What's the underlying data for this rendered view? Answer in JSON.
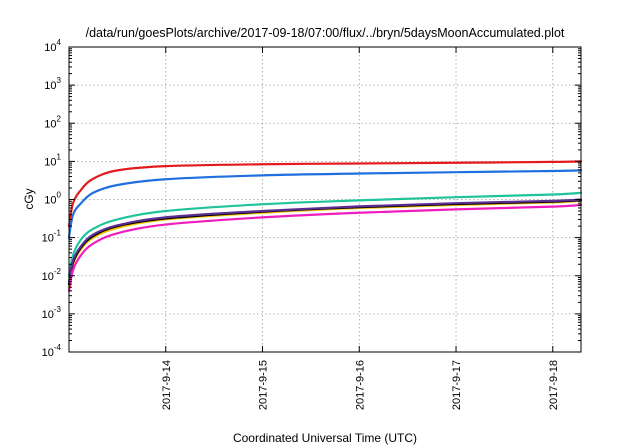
{
  "chart_data": {
    "type": "line",
    "title": "/data/run/goesPlots/archive/2017-09-18/07:00/flux/../bryn/5daysMoonAccumulated.plot",
    "xlabel": "Coordinated Universal Time (UTC)",
    "ylabel": "cGy",
    "x_range": [
      "2017-09-13T00:00",
      "2017-09-18T07:00"
    ],
    "x_ticks": [
      "2017-9-14",
      "2017-9-15",
      "2017-9-16",
      "2017-9-17",
      "2017-9-18"
    ],
    "y_scale": "log",
    "ylim": [
      0.0001,
      10000
    ],
    "y_ticks": [
      {
        "base": "10",
        "exp": "-4"
      },
      {
        "base": "10",
        "exp": "-3"
      },
      {
        "base": "10",
        "exp": "-2"
      },
      {
        "base": "10",
        "exp": "-1"
      },
      {
        "base": "10",
        "exp": "0"
      },
      {
        "base": "10",
        "exp": "1"
      },
      {
        "base": "10",
        "exp": "2"
      },
      {
        "base": "10",
        "exp": "3"
      },
      {
        "base": "10",
        "exp": "4"
      }
    ],
    "grid": true,
    "series": [
      {
        "color": "#e41a1c",
        "x": [
          "2017-09-13T00:00",
          "2017-09-13T01:00",
          "2017-09-13T03:00",
          "2017-09-13T06:00",
          "2017-09-13T12:00",
          "2017-09-14T00:00",
          "2017-09-15T00:00",
          "2017-09-16T00:00",
          "2017-09-17T00:00",
          "2017-09-18T00:00",
          "2017-09-18T07:00"
        ],
        "y": [
          0.2,
          0.8,
          1.8,
          3.5,
          5.8,
          7.5,
          8.4,
          8.8,
          9.2,
          9.7,
          10.0
        ]
      },
      {
        "color": "#1f6fe0",
        "x": [
          "2017-09-13T00:00",
          "2017-09-13T01:00",
          "2017-09-13T03:00",
          "2017-09-13T06:00",
          "2017-09-13T12:00",
          "2017-09-14T00:00",
          "2017-09-15T00:00",
          "2017-09-16T00:00",
          "2017-09-17T00:00",
          "2017-09-18T00:00",
          "2017-09-18T07:00"
        ],
        "y": [
          0.1,
          0.4,
          0.8,
          1.5,
          2.4,
          3.4,
          4.3,
          4.8,
          5.2,
          5.6,
          5.8
        ]
      },
      {
        "color": "#1fc49a",
        "x": [
          "2017-09-13T00:00",
          "2017-09-13T01:00",
          "2017-09-13T03:00",
          "2017-09-13T06:00",
          "2017-09-13T12:00",
          "2017-09-14T00:00",
          "2017-09-15T00:00",
          "2017-09-16T00:00",
          "2017-09-17T00:00",
          "2017-09-18T00:00",
          "2017-09-18T07:00"
        ],
        "y": [
          0.01,
          0.035,
          0.09,
          0.17,
          0.3,
          0.5,
          0.75,
          0.95,
          1.15,
          1.35,
          1.5
        ]
      },
      {
        "color": "#f5c200",
        "x": [
          "2017-09-13T00:00",
          "2017-09-13T01:00",
          "2017-09-13T03:00",
          "2017-09-13T06:00",
          "2017-09-13T12:00",
          "2017-09-14T00:00",
          "2017-09-15T00:00",
          "2017-09-16T00:00",
          "2017-09-17T00:00",
          "2017-09-18T00:00",
          "2017-09-18T07:00"
        ],
        "y": [
          0.005,
          0.02,
          0.05,
          0.1,
          0.18,
          0.3,
          0.45,
          0.6,
          0.72,
          0.84,
          0.92
        ]
      },
      {
        "color": "#000000",
        "x": [
          "2017-09-13T00:00",
          "2017-09-13T01:00",
          "2017-09-13T03:00",
          "2017-09-13T06:00",
          "2017-09-13T12:00",
          "2017-09-14T00:00",
          "2017-09-15T00:00",
          "2017-09-16T00:00",
          "2017-09-17T00:00",
          "2017-09-18T00:00",
          "2017-09-18T07:00"
        ],
        "y": [
          0.006,
          0.022,
          0.055,
          0.11,
          0.2,
          0.32,
          0.48,
          0.63,
          0.76,
          0.88,
          0.96
        ]
      },
      {
        "color": "#5a2d91",
        "x": [
          "2017-09-13T00:00",
          "2017-09-13T01:00",
          "2017-09-13T03:00",
          "2017-09-13T06:00",
          "2017-09-13T12:00",
          "2017-09-14T00:00",
          "2017-09-15T00:00",
          "2017-09-16T00:00",
          "2017-09-17T00:00",
          "2017-09-18T00:00",
          "2017-09-18T07:00"
        ],
        "y": [
          0.007,
          0.025,
          0.06,
          0.12,
          0.21,
          0.34,
          0.5,
          0.66,
          0.8,
          0.92,
          1.0
        ]
      },
      {
        "color": "#f01dbe",
        "x": [
          "2017-09-13T00:00",
          "2017-09-13T01:00",
          "2017-09-13T03:00",
          "2017-09-13T06:00",
          "2017-09-13T12:00",
          "2017-09-14T00:00",
          "2017-09-15T00:00",
          "2017-09-16T00:00",
          "2017-09-17T00:00",
          "2017-09-18T00:00",
          "2017-09-18T07:00"
        ],
        "y": [
          0.004,
          0.014,
          0.035,
          0.07,
          0.13,
          0.22,
          0.34,
          0.45,
          0.55,
          0.65,
          0.72
        ]
      }
    ]
  }
}
